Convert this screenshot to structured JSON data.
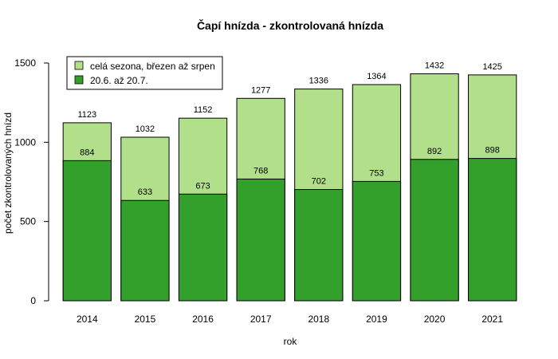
{
  "chart_data": {
    "type": "bar",
    "title": "Čapí hnízda - zkontrolovaná hnízda",
    "xlabel": "rok",
    "ylabel": "počet zkontrolovaných hnízd",
    "categories": [
      "2014",
      "2015",
      "2016",
      "2017",
      "2018",
      "2019",
      "2020",
      "2021"
    ],
    "ylim": [
      0,
      1500
    ],
    "yticks": [
      "0",
      "500",
      "1000",
      "1500"
    ],
    "grid": false,
    "legend_position": "top-left",
    "series": [
      {
        "name": "celá sezona, březen až srpen",
        "color": "#b2df8a",
        "values": [
          1123,
          1032,
          1152,
          1277,
          1336,
          1364,
          1432,
          1425
        ],
        "labels": [
          "1123",
          "1032",
          "1152",
          "1277",
          "1336",
          "1364",
          "1432",
          "1425"
        ]
      },
      {
        "name": "20.6. až 20.7.",
        "color": "#33a02c",
        "values": [
          884,
          633,
          673,
          768,
          702,
          753,
          892,
          898
        ],
        "labels": [
          "884",
          "633",
          "673",
          "768",
          "702",
          "753",
          "892",
          "898"
        ]
      }
    ]
  }
}
